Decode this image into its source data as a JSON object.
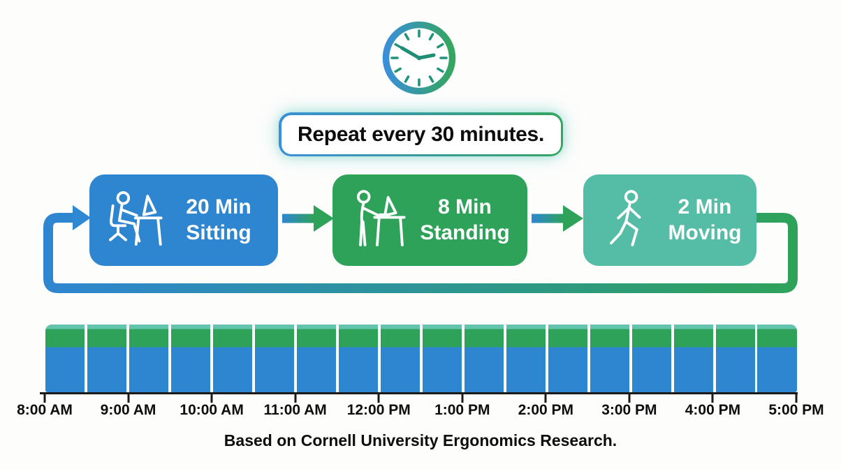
{
  "banner": {
    "text": "Repeat every 30 minutes."
  },
  "cycle": {
    "steps": [
      {
        "duration": "20 Min",
        "activity": "Sitting",
        "color": "#2E86D1",
        "icon": "person-sitting-at-desk-icon"
      },
      {
        "duration": "8 Min",
        "activity": "Standing",
        "color": "#2FA25A",
        "icon": "person-at-standing-desk-icon"
      },
      {
        "duration": "2 Min",
        "activity": "Moving",
        "color": "#55BCA6",
        "icon": "person-walking-icon"
      }
    ]
  },
  "timeline": {
    "segments": 18,
    "segment_minutes": 30,
    "layers": [
      {
        "name": "Moving",
        "minutes": 2,
        "fraction": 0.067,
        "color": "#63C3AD"
      },
      {
        "name": "Standing",
        "minutes": 8,
        "fraction": 0.266,
        "color": "#2FA25A"
      },
      {
        "name": "Sitting",
        "minutes": 20,
        "fraction": 0.667,
        "color": "#2E86D1"
      }
    ],
    "hour_labels": [
      "8:00 AM",
      "9:00 AM",
      "10:00 AM",
      "11:00 AM",
      "12:00 PM",
      "1:00 PM",
      "2:00 PM",
      "3:00 PM",
      "4:00 PM",
      "5:00 PM"
    ]
  },
  "footer": {
    "attribution": "Based on Cornell University Ergonomics Research."
  },
  "colors": {
    "blue": "#2E86D1",
    "green": "#2FA25A",
    "teal": "#55BCA6",
    "gradient_start": "#3A8FD9",
    "gradient_end": "#35A65E",
    "axis": "#1A1A1A",
    "text": "#0D0D0D",
    "background": "#FDFDFC"
  }
}
